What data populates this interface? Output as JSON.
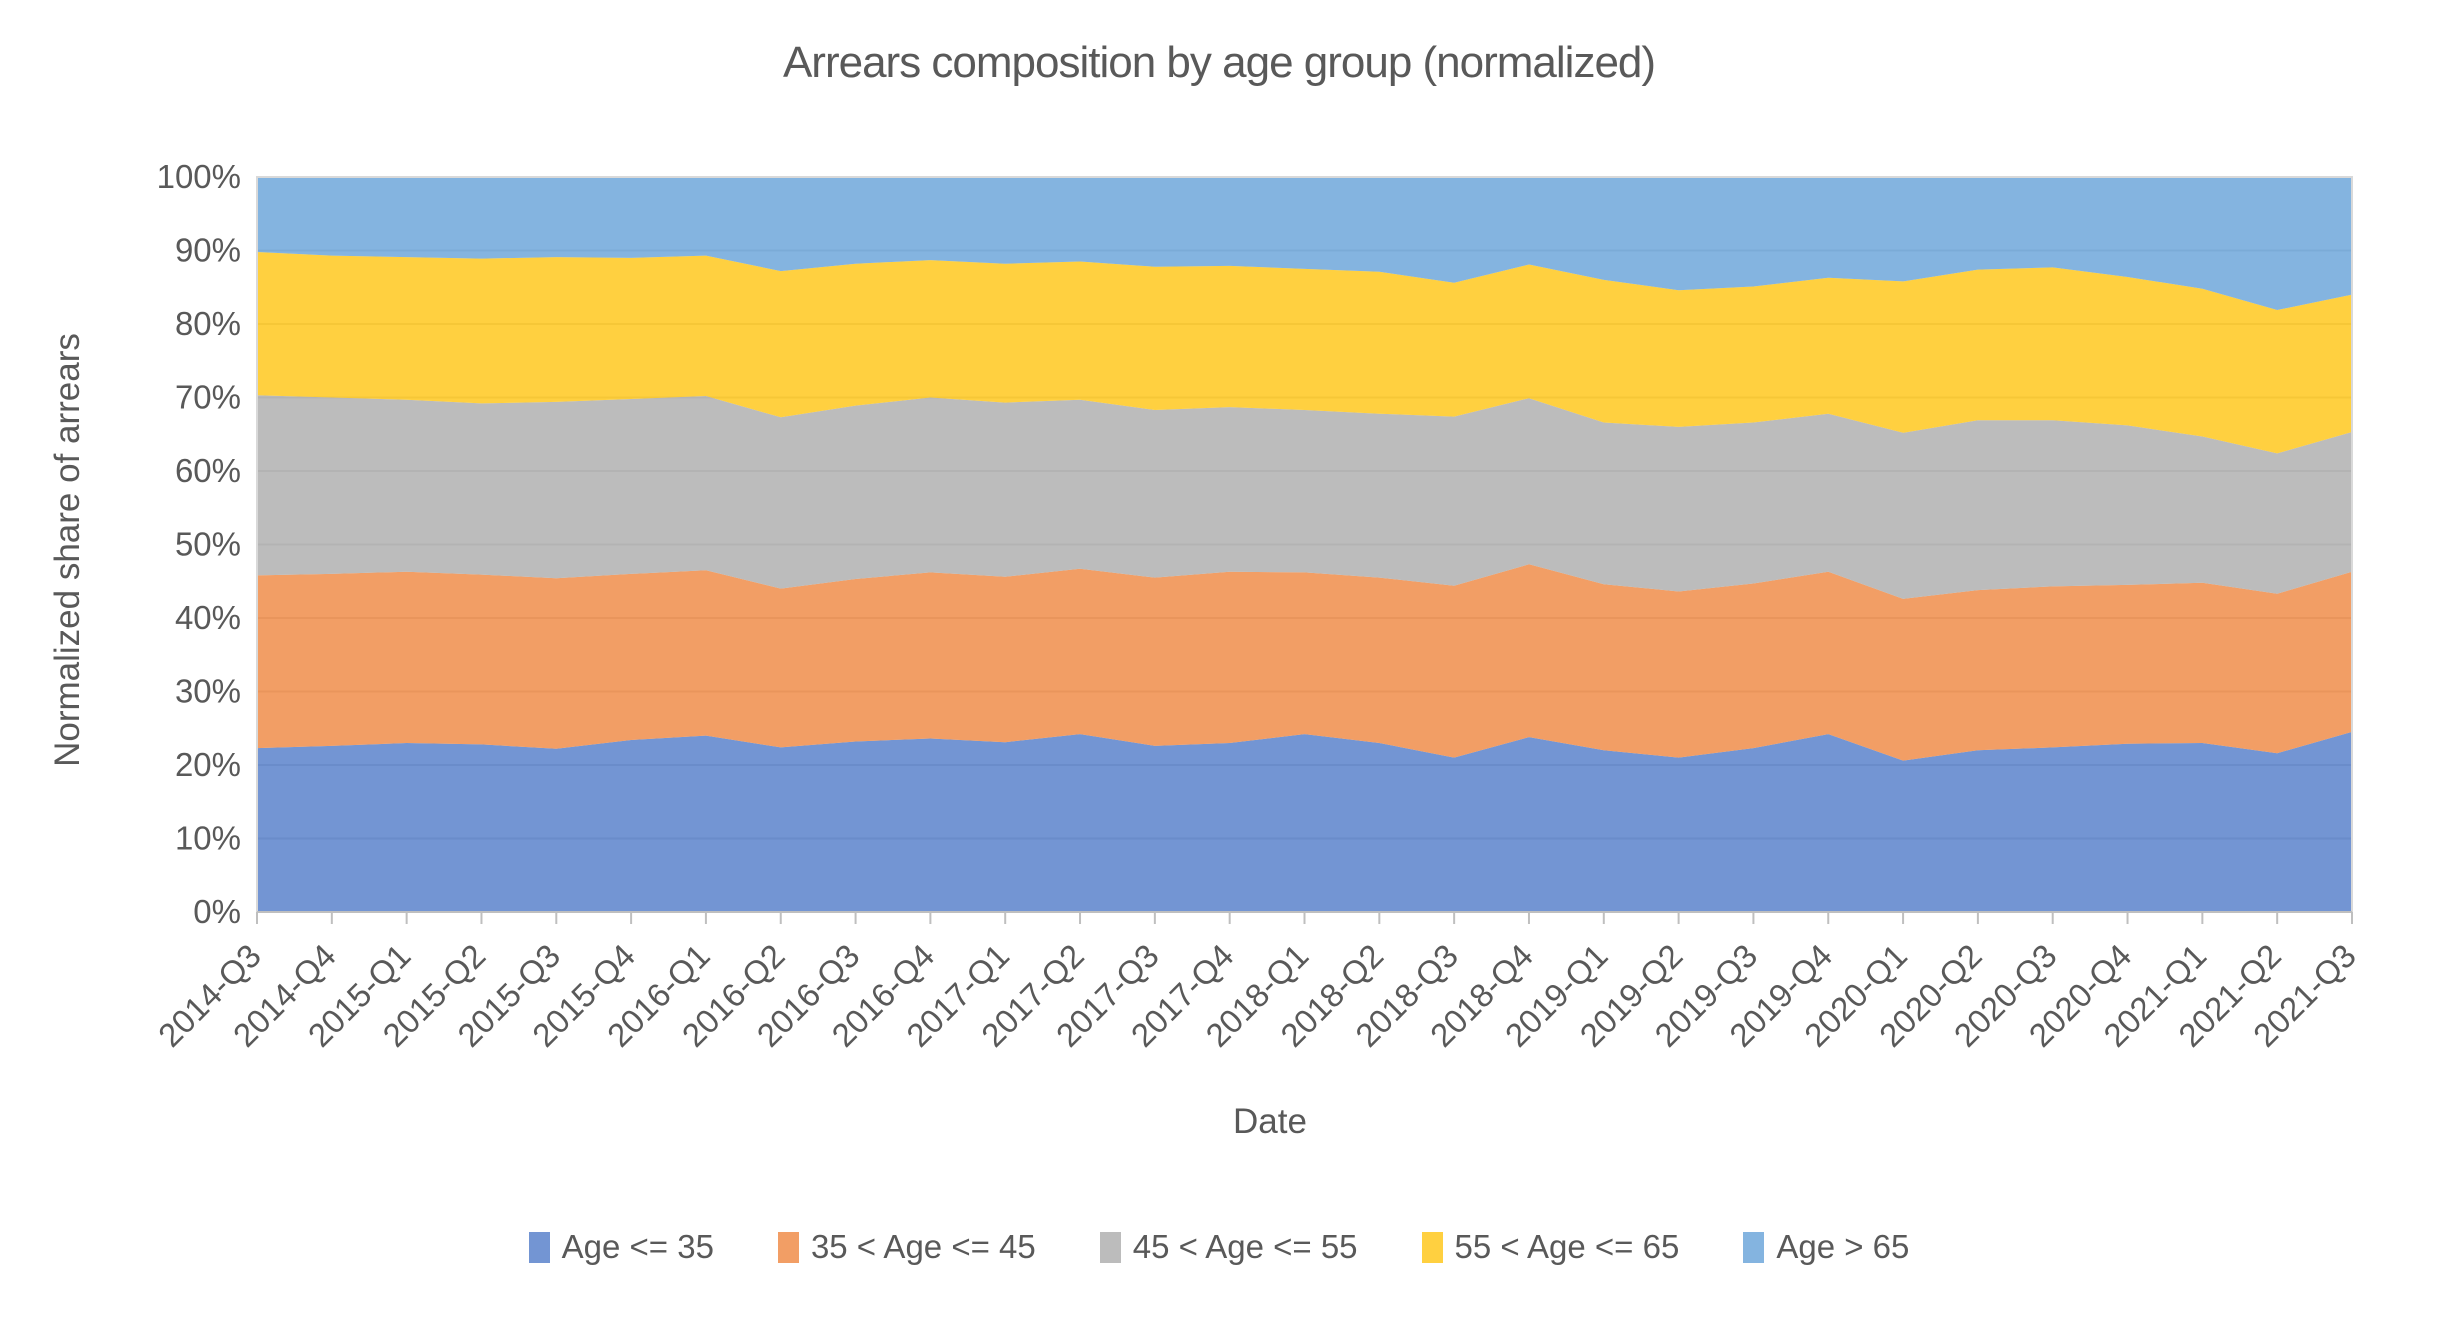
{
  "chart_data": {
    "type": "area",
    "stacking": "percent",
    "title": "Arrears composition by age group (normalized)",
    "xlabel": "Date",
    "ylabel": "Normalized share of arrears",
    "categories": [
      "2014-Q3",
      "2014-Q4",
      "2015-Q1",
      "2015-Q2",
      "2015-Q3",
      "2015-Q4",
      "2016-Q1",
      "2016-Q2",
      "2016-Q3",
      "2016-Q4",
      "2017-Q1",
      "2017-Q2",
      "2017-Q3",
      "2017-Q4",
      "2018-Q1",
      "2018-Q2",
      "2018-Q3",
      "2018-Q4",
      "2019-Q1",
      "2019-Q2",
      "2019-Q3",
      "2019-Q4",
      "2020-Q1",
      "2020-Q2",
      "2020-Q3",
      "2020-Q4",
      "2021-Q1",
      "2021-Q2",
      "2021-Q3"
    ],
    "series": [
      {
        "name": "Age <= 35",
        "color": "#4472C4",
        "values": [
          22.3,
          22.6,
          23.0,
          22.8,
          22.2,
          23.4,
          24.0,
          22.4,
          23.2,
          23.6,
          23.1,
          24.2,
          22.6,
          23.0,
          24.2,
          23.0,
          21.0,
          23.8,
          22.0,
          21.0,
          22.3,
          24.2,
          20.6,
          22.0,
          22.4,
          22.9,
          23.0,
          21.6,
          24.5
        ]
      },
      {
        "name": "35 < Age <= 45",
        "color": "#ED7D31",
        "values": [
          23.5,
          23.4,
          23.3,
          23.1,
          23.2,
          22.6,
          22.5,
          21.6,
          22.1,
          22.6,
          22.5,
          22.5,
          22.9,
          23.3,
          22.0,
          22.5,
          23.4,
          23.5,
          22.6,
          22.6,
          22.4,
          22.1,
          22.0,
          21.8,
          21.9,
          21.6,
          21.8,
          21.7,
          21.8
        ]
      },
      {
        "name": "45 < Age <= 55",
        "color": "#A5A5A5",
        "values": [
          24.5,
          24.0,
          23.4,
          23.3,
          24.0,
          23.8,
          23.7,
          23.3,
          23.6,
          23.8,
          23.7,
          23.0,
          22.8,
          22.4,
          22.1,
          22.3,
          23.0,
          22.6,
          22.0,
          22.4,
          21.9,
          21.5,
          22.6,
          23.1,
          22.6,
          21.7,
          19.9,
          19.1,
          19.0
        ]
      },
      {
        "name": "55 < Age <= 65",
        "color": "#FFC000",
        "values": [
          19.5,
          19.3,
          19.4,
          19.7,
          19.7,
          19.2,
          19.1,
          19.9,
          19.3,
          18.7,
          18.9,
          18.8,
          19.5,
          19.2,
          19.2,
          19.3,
          18.2,
          18.2,
          19.4,
          18.6,
          18.5,
          18.5,
          20.6,
          20.5,
          20.8,
          20.2,
          20.1,
          19.5,
          18.7
        ]
      },
      {
        "name": "Age > 65",
        "color": "#5B9BD5",
        "values": [
          10.2,
          10.7,
          10.9,
          11.1,
          10.9,
          11.0,
          10.7,
          12.8,
          11.8,
          11.3,
          11.8,
          11.5,
          12.2,
          12.1,
          12.5,
          12.9,
          14.4,
          11.9,
          14.0,
          15.4,
          14.9,
          13.7,
          14.2,
          12.6,
          12.3,
          13.6,
          15.2,
          18.1,
          16.0
        ]
      }
    ],
    "ylim": [
      0,
      100
    ],
    "ytick_step": 10,
    "ytick_suffix": "%",
    "grid": true,
    "legend_position": "bottom",
    "fill_opacity": 0.75
  },
  "style": {
    "text_color": "#595959",
    "gridline_color": "#D9D9D9",
    "axis_color": "#BFBFBF",
    "background": "#FFFFFF"
  }
}
